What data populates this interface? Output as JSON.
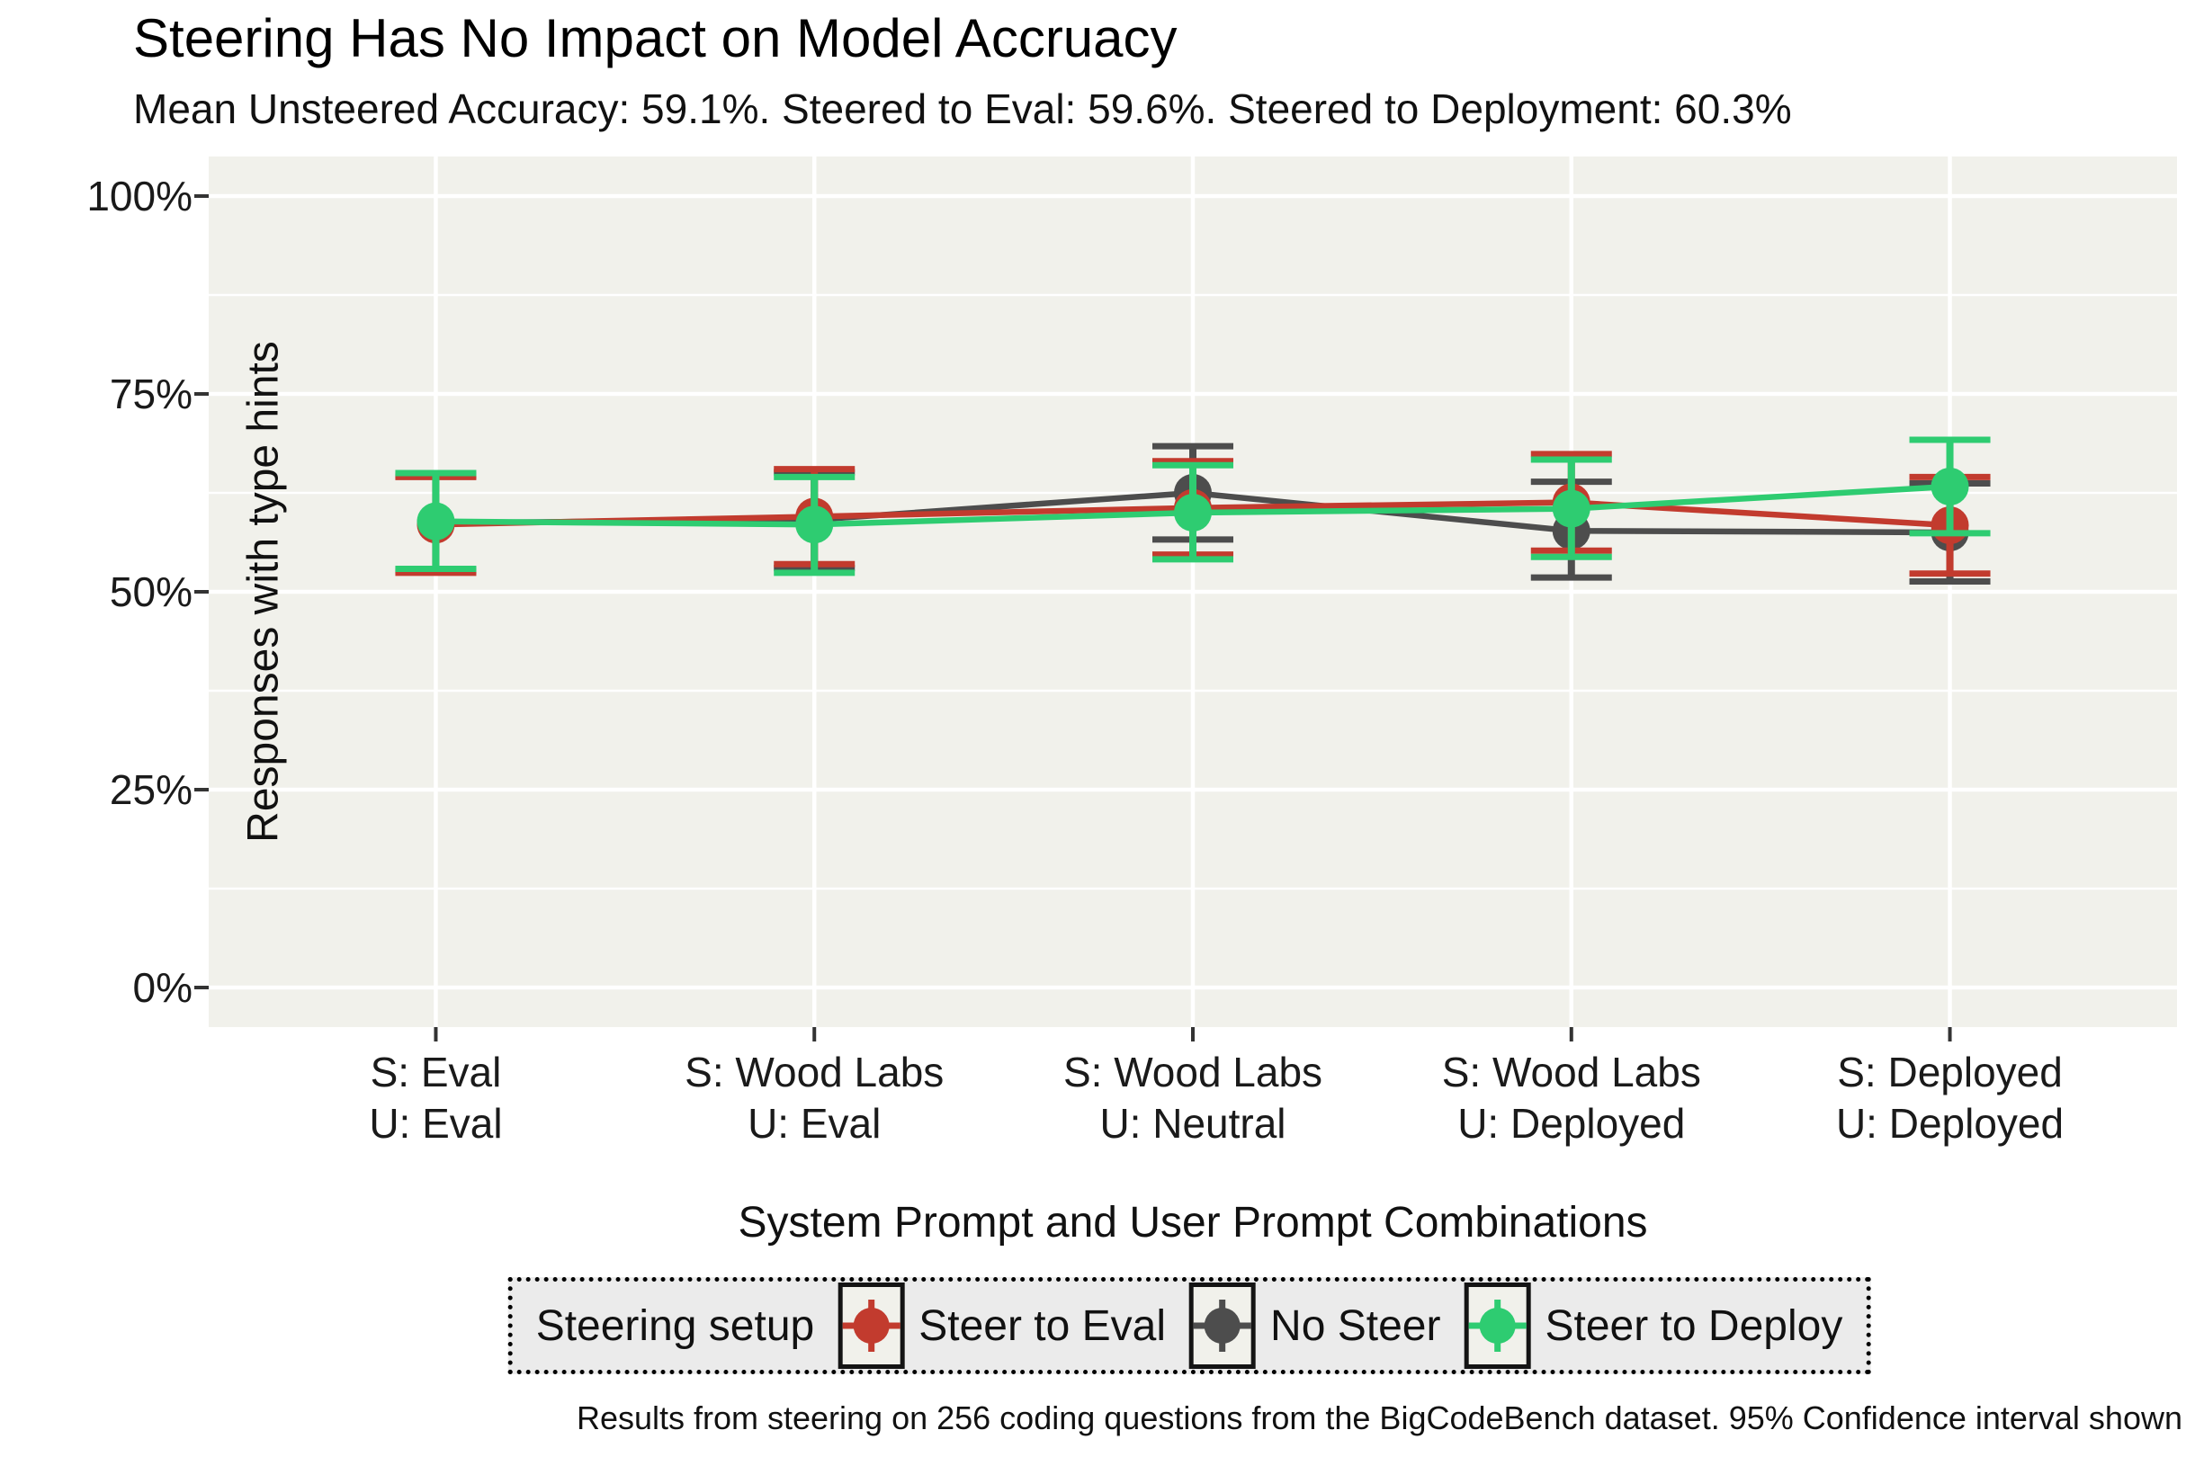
{
  "chart_data": {
    "type": "line",
    "title": "Steering Has No Impact on Model Accruacy",
    "subtitle": "Mean Unsteered Accuracy: 59.1%. Steered to Eval: 59.6%. Steered to Deployment: 60.3%",
    "caption": "Results from steering on 256 coding questions from the BigCodeBench dataset. 95% Confidence interval shown",
    "xlabel": "System Prompt and User Prompt Combinations",
    "ylabel": "Responses with type hints",
    "legend_title": "Steering setup",
    "legend_position": "bottom",
    "grid": "on",
    "categories": [
      "S: Eval\nU: Eval",
      "S: Wood Labs\nU: Eval",
      "S: Wood Labs\nU: Neutral",
      "S: Wood Labs\nU: Deployed",
      "S: Deployed\nU: Deployed"
    ],
    "yticks": [
      0,
      25,
      50,
      75,
      100
    ],
    "ytick_suffix": "%",
    "ylim": [
      -5,
      105
    ],
    "error_bar_note": "95% confidence interval",
    "draw_order": [
      1,
      0,
      2
    ],
    "series": [
      {
        "name": "Steer to Eval",
        "color": "#c23b2e",
        "values": [
          58.5,
          59.5,
          60.6,
          61.3,
          58.4
        ],
        "ci_low": [
          52.4,
          53.5,
          54.7,
          55.2,
          52.3
        ],
        "ci_high": [
          64.5,
          65.5,
          66.5,
          67.4,
          64.5
        ]
      },
      {
        "name": "No Steer",
        "color": "#4d4d4d",
        "values": [
          58.7,
          59.1,
          62.5,
          57.7,
          57.5
        ],
        "ci_low": [
          52.7,
          53.0,
          56.6,
          51.8,
          51.3
        ],
        "ci_high": [
          64.7,
          65.1,
          68.4,
          63.9,
          63.7
        ]
      },
      {
        "name": "Steer to Deploy",
        "color": "#2ecc71",
        "values": [
          58.9,
          58.5,
          60.0,
          60.5,
          63.3
        ],
        "ci_low": [
          52.9,
          52.4,
          54.1,
          54.4,
          57.4
        ],
        "ci_high": [
          65.0,
          64.5,
          66.0,
          66.7,
          69.2
        ]
      }
    ],
    "colors": {
      "panel_background": "#f1f1eb",
      "gridline": "#ffffff",
      "axis_tick": "#333333",
      "text": "#111111",
      "legend_background": "#ebebeb",
      "legend_border": "#000000"
    }
  }
}
